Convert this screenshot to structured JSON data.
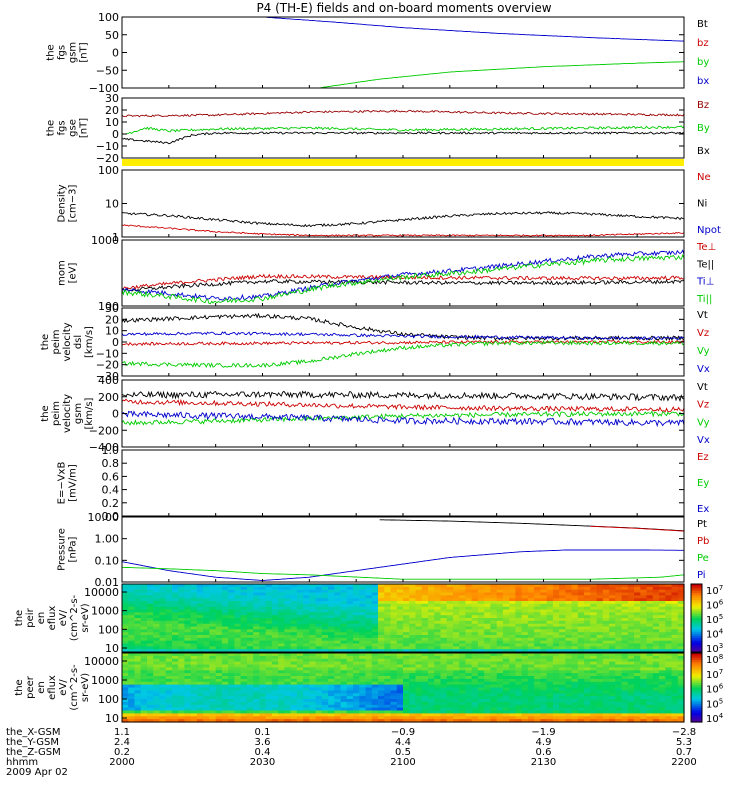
{
  "title": "P4 (TH-E) fields and on-board moments overview",
  "chart_data": {
    "type": "line",
    "x_range_hhmm": [
      "2000",
      "2200"
    ],
    "panels": [
      {
        "id": "fgs_gsm",
        "ylabel": [
          "the",
          "fgs",
          "gsm",
          "[nT]"
        ],
        "ticks": [
          "100",
          "50",
          "0",
          "−50",
          "−100"
        ],
        "ylim": [
          -100,
          100
        ],
        "scale": "linear",
        "legend": [
          {
            "name": "Bt",
            "color": "#000000"
          },
          {
            "name": "bz",
            "color": "#cc0000"
          },
          {
            "name": "by",
            "color": "#00cc00"
          },
          {
            "name": "bx",
            "color": "#0000cc"
          }
        ],
        "series": [
          {
            "name": "bx",
            "color": "#0000cc",
            "x": [
              30.0,
              45,
              60,
              80,
              100,
              120
            ],
            "y": [
              100,
              86,
              70,
              54,
              42,
              32
            ],
            "noise": 0.3
          },
          {
            "name": "by",
            "color": "#00cc00",
            "x": [
              42.0,
              55,
              70,
              90,
              110,
              120
            ],
            "y": [
              -100,
              -75,
              -55,
              -40,
              -30,
              -26
            ],
            "noise": 0.3
          }
        ]
      },
      {
        "id": "fgs_gse",
        "ylabel": [
          "the",
          "fgs",
          "gse",
          "[nT]"
        ],
        "ticks": [
          "30",
          "20",
          "10",
          "0",
          "−10",
          "−20"
        ],
        "ylim": [
          -25,
          35
        ],
        "scale": "linear",
        "legend": [
          {
            "name": "Bz",
            "color": "#990000"
          },
          {
            "name": "By",
            "color": "#00cc00"
          },
          {
            "name": "Bx",
            "color": "#000000"
          }
        ],
        "series": [
          {
            "name": "Bz",
            "color": "#990000",
            "x": [
              0,
              20,
              40,
              60,
              80,
              100,
              120
            ],
            "y": [
              17,
              18,
              21,
              22,
              20,
              19,
              18
            ],
            "noise": 1.0
          },
          {
            "name": "By",
            "color": "#00cc00",
            "x": [
              0,
              5,
              10,
              20,
              40,
              60,
              80,
              100,
              120
            ],
            "y": [
              -2,
              5,
              2,
              4,
              5,
              3,
              4,
              5,
              6
            ],
            "noise": 1.2
          },
          {
            "name": "Bx",
            "color": "#000000",
            "x": [
              0,
              5,
              10,
              15,
              20,
              40,
              60,
              80,
              100,
              120
            ],
            "y": [
              -6,
              -8,
              -10,
              -2,
              0,
              0,
              0,
              0,
              0,
              0
            ],
            "noise": 1.0
          }
        ]
      },
      {
        "id": "density",
        "ylabel": [
          "Density",
          "[cm−3]"
        ],
        "ticks": [
          "100",
          "10",
          "1"
        ],
        "ylim": [
          0.3,
          200
        ],
        "scale": "log",
        "legend": [
          {
            "name": "Ne",
            "color": "#cc0000"
          },
          {
            "name": "Ni",
            "color": "#000000"
          },
          {
            "name": "Npot",
            "color": "#0000cc"
          }
        ],
        "series": [
          {
            "name": "Ni",
            "color": "#000000",
            "x": [
              0,
              10,
              20,
              30,
              40,
              50,
              60,
              70,
              80,
              90,
              100,
              110,
              120
            ],
            "y": [
              3,
              2.4,
              1.6,
              1.1,
              0.9,
              1.1,
              1.6,
              2.3,
              2.9,
              3.1,
              2.8,
              2.2,
              1.8
            ],
            "noise": 0.05
          },
          {
            "name": "Ne",
            "color": "#cc0000",
            "x": [
              0,
              10,
              20,
              30,
              40,
              60,
              80,
              100,
              120
            ],
            "y": [
              0.95,
              0.7,
              0.5,
              0.4,
              0.35,
              0.35,
              0.35,
              0.35,
              0.45
            ],
            "noise": 0.03
          }
        ]
      },
      {
        "id": "mom_temp",
        "ylabel": [
          "mom",
          "[eV]"
        ],
        "ticks": [
          "1000",
          "100"
        ],
        "ylim": [
          50,
          3000
        ],
        "scale": "log",
        "legend": [
          {
            "name": "Te⊥",
            "color": "#cc0000"
          },
          {
            "name": "Te||",
            "color": "#000000"
          },
          {
            "name": "Ti⊥",
            "color": "#0000cc"
          },
          {
            "name": "Ti||",
            "color": "#00cc00"
          }
        ],
        "series": [
          {
            "name": "Te⊥",
            "color": "#cc0000",
            "x": [
              0,
              15,
              30,
              50,
              70,
              90,
              110,
              120
            ],
            "y": [
              150,
              230,
              320,
              300,
              290,
              280,
              280,
              290
            ],
            "noise": 0.05
          },
          {
            "name": "Te||",
            "color": "#000000",
            "x": [
              0,
              15,
              30,
              50,
              70,
              90,
              110,
              120
            ],
            "y": [
              130,
              180,
              230,
              220,
              210,
              210,
              220,
              230
            ],
            "noise": 0.05
          },
          {
            "name": "Ti⊥",
            "color": "#0000cc",
            "x": [
              0,
              10,
              20,
              30,
              45,
              60,
              75,
              90,
              105,
              120
            ],
            "y": [
              140,
              110,
              80,
              90,
              200,
              350,
              500,
              800,
              1200,
              1400
            ],
            "noise": 0.06
          },
          {
            "name": "Ti||",
            "color": "#00cc00",
            "x": [
              0,
              10,
              20,
              30,
              45,
              60,
              75,
              90,
              105,
              120
            ],
            "y": [
              120,
              90,
              65,
              80,
              180,
              300,
              420,
              650,
              900,
              1050
            ],
            "noise": 0.07
          }
        ]
      },
      {
        "id": "peim_vel_dsl",
        "ylabel": [
          "the",
          "peim",
          "velocity",
          "dsl",
          "[km/s]"
        ],
        "ticks": [
          "30",
          "20",
          "10",
          "0",
          "−10",
          "−20",
          "−30"
        ],
        "ylim": [
          -35,
          35
        ],
        "scale": "linear",
        "legend": [
          {
            "name": "Vt",
            "color": "#000000"
          },
          {
            "name": "Vz",
            "color": "#cc0000"
          },
          {
            "name": "Vy",
            "color": "#00cc00"
          },
          {
            "name": "Vx",
            "color": "#0000cc"
          }
        ],
        "series": [
          {
            "name": "Vt",
            "color": "#000000",
            "x": [
              0,
              10,
              20,
              30,
              40,
              50,
              60,
              70,
              80,
              100,
              120
            ],
            "y": [
              22,
              24,
              26,
              27,
              24,
              15,
              8,
              5,
              4,
              4,
              4
            ],
            "noise": 2.0
          },
          {
            "name": "Vx",
            "color": "#0000cc",
            "x": [
              0,
              20,
              40,
              60,
              80,
              100,
              120
            ],
            "y": [
              8,
              9,
              8,
              6,
              5,
              4,
              4
            ],
            "noise": 1.5
          },
          {
            "name": "Vz",
            "color": "#cc0000",
            "x": [
              0,
              40,
              80,
              120
            ],
            "y": [
              -2,
              -1,
              0,
              0
            ],
            "noise": 1.5
          },
          {
            "name": "Vy",
            "color": "#00cc00",
            "x": [
              0,
              10,
              20,
              30,
              40,
              50,
              60,
              70,
              80,
              100,
              120
            ],
            "y": [
              -22,
              -23,
              -24,
              -24,
              -20,
              -12,
              -6,
              -3,
              -1,
              -1,
              -1
            ],
            "noise": 2.0
          }
        ]
      },
      {
        "id": "peim_vel_gsm",
        "ylabel": [
          "the",
          "peim",
          "velocity",
          "gsm",
          "[km/s]"
        ],
        "ticks": [
          "400",
          "200",
          "0",
          "−200",
          "−400"
        ],
        "ylim": [
          -420,
          420
        ],
        "scale": "linear",
        "legend": [
          {
            "name": "Vt",
            "color": "#000000"
          },
          {
            "name": "Vz",
            "color": "#cc0000"
          },
          {
            "name": "Vy",
            "color": "#00cc00"
          },
          {
            "name": "Vx",
            "color": "#0000cc"
          }
        ],
        "series": [
          {
            "name": "Vt",
            "color": "#000000",
            "x": [
              0,
              30,
              60,
              90,
              120
            ],
            "y": [
              230,
              240,
              230,
              220,
              200
            ],
            "noise": 40
          },
          {
            "name": "Vz",
            "color": "#cc0000",
            "x": [
              0,
              30,
              60,
              90,
              120
            ],
            "y": [
              150,
              120,
              80,
              60,
              50
            ],
            "noise": 30
          },
          {
            "name": "Vy",
            "color": "#00cc00",
            "x": [
              0,
              30,
              60,
              90,
              120
            ],
            "y": [
              -120,
              -80,
              -30,
              -10,
              0
            ],
            "noise": 30
          },
          {
            "name": "Vx",
            "color": "#0000cc",
            "x": [
              0,
              30,
              60,
              90,
              120
            ],
            "y": [
              -10,
              -40,
              -90,
              -100,
              -120
            ],
            "noise": 40
          }
        ]
      },
      {
        "id": "exb",
        "ylabel": [
          "E=−VxB",
          "[mV/m]"
        ],
        "ticks": [
          "1.0",
          "0.8",
          "0.6",
          "0.4",
          "0.2",
          "0.0"
        ],
        "ylim": [
          0,
          1
        ],
        "scale": "linear",
        "legend": [
          {
            "name": "Ez",
            "color": "#cc0000"
          },
          {
            "name": "Ey",
            "color": "#00cc00"
          },
          {
            "name": "Ex",
            "color": "#0000cc"
          }
        ],
        "series": []
      },
      {
        "id": "pressure",
        "ylabel": [
          "Pressure",
          "[nPa]"
        ],
        "ticks": [
          "10.00",
          "1.00",
          "0.10",
          "0.01"
        ],
        "ylim": [
          0.005,
          14
        ],
        "scale": "log",
        "legend": [
          {
            "name": "Pt",
            "color": "#000000"
          },
          {
            "name": "Pb",
            "color": "#cc0000"
          },
          {
            "name": "Pe",
            "color": "#00cc00"
          },
          {
            "name": "Pi",
            "color": "#0000cc"
          }
        ],
        "series": [
          {
            "name": "Pt",
            "color": "#000000",
            "x": [
              55,
              70,
              85,
              100,
              110,
              120
            ],
            "y": [
              10,
              8.5,
              6.5,
              4.6,
              3.6,
              2.6
            ],
            "noise": 0.0
          },
          {
            "name": "Pb",
            "color": "#cc0000",
            "x": [
              100,
              110,
              120
            ],
            "y": [
              4.5,
              3.5,
              2.5
            ],
            "noise": 0.0
          },
          {
            "name": "Pi",
            "color": "#0000cc",
            "x": [
              0,
              10,
              20,
              30,
              40,
              55,
              70,
              85,
              95,
              110,
              120
            ],
            "y": [
              0.06,
              0.02,
              0.009,
              0.006,
              0.009,
              0.03,
              0.1,
              0.2,
              0.25,
              0.25,
              0.24
            ],
            "noise": 0.0
          },
          {
            "name": "Pe",
            "color": "#00cc00",
            "x": [
              0,
              10,
              20,
              30,
              40,
              60,
              80,
              100,
              115,
              120
            ],
            "y": [
              0.03,
              0.025,
              0.02,
              0.014,
              0.012,
              0.007,
              0.007,
              0.007,
              0.009,
              0.012
            ],
            "noise": 0.0
          }
        ]
      }
    ],
    "spectrograms": [
      {
        "id": "peir_en_eflux",
        "ylabel": [
          "the",
          "peir",
          "en",
          "eflux",
          "eV/",
          "(cm^2-s-",
          "sr-eV)"
        ],
        "ticks": [
          "10000",
          "1000",
          "100",
          "10"
        ],
        "colorbar_ticks": [
          "10^7",
          "10^6",
          "10^5",
          "10^4",
          "10^3"
        ]
      },
      {
        "id": "peer_en_eflux",
        "ylabel": [
          "the",
          "peer",
          "en",
          "eflux",
          "eV/",
          "(cm^2-s-",
          "sr-eV)"
        ],
        "ticks": [
          "10000",
          "1000",
          "100",
          "10"
        ],
        "colorbar_ticks": [
          "10^8",
          "10^7",
          "10^6",
          "10^5",
          "10^4"
        ]
      }
    ],
    "ephemeris": {
      "labels": [
        "the_X-GSM",
        "the_Y-GSM",
        "the_Z-GSM",
        "hhmm",
        "2009 Apr 02"
      ],
      "rows": [
        [
          "1.1",
          "0.1",
          "−0.9",
          "−1.9",
          "−2.8"
        ],
        [
          "2.4",
          "3.6",
          "4.4",
          "4.9",
          "5.3"
        ],
        [
          "0.2",
          "0.4",
          "0.5",
          "0.6",
          "0.7"
        ],
        [
          "2000",
          "2030",
          "2100",
          "2130",
          "2200"
        ]
      ]
    }
  }
}
